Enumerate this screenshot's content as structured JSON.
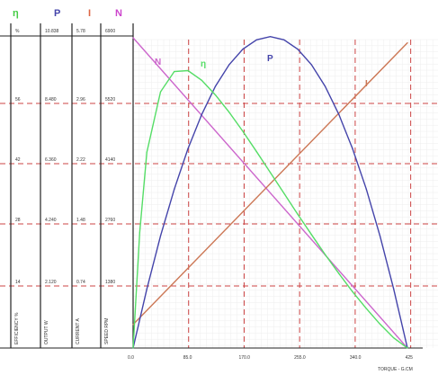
{
  "chart_data": {
    "type": "line",
    "title": "",
    "legend": [
      {
        "symbol": "η",
        "color": "#44cc44"
      },
      {
        "symbol": "P",
        "color": "#4444aa"
      },
      {
        "symbol": "I",
        "color": "#dd6644"
      },
      {
        "symbol": "N",
        "color": "#cc44cc"
      }
    ],
    "xlabel": "TORQUE - G.CM",
    "xlim": [
      0,
      420
    ],
    "x_ticks": [
      "0.0",
      "85.0",
      "170.0",
      "255.0",
      "340.0",
      "425"
    ],
    "x_tick_values": [
      0,
      85,
      170,
      255,
      340,
      425
    ],
    "left_axes": [
      {
        "header": "%",
        "label": "EFFICIENCY %",
        "ticks": [
          "14",
          "28",
          "42",
          "56"
        ]
      },
      {
        "header": "10.838",
        "label": "OUTPUT W",
        "ticks": [
          "2.120",
          "4.240",
          "6.360",
          "8.480"
        ]
      },
      {
        "header": "5.78",
        "label": "CURRENT A",
        "ticks": [
          "0.74",
          "1.48",
          "2.22",
          "2.96"
        ]
      },
      {
        "header": "6900",
        "label": "SPEED RPM",
        "ticks": [
          "1380",
          "2760",
          "4140",
          "5520"
        ]
      }
    ],
    "series": [
      {
        "name": "N",
        "color": "#cc66cc",
        "x": [
          0,
          420
        ],
        "y": [
          6900,
          0
        ]
      },
      {
        "name": "I",
        "color": "#cc7755",
        "x": [
          0,
          420
        ],
        "y": [
          0.28,
          3.64
        ]
      },
      {
        "name": "P",
        "color": "#4444aa",
        "x": [
          0,
          21,
          42,
          63,
          84,
          105,
          126,
          147,
          168,
          189,
          210,
          231,
          252,
          273,
          294,
          315,
          336,
          357,
          378,
          399,
          420
        ],
        "y": [
          0,
          2.02,
          3.83,
          5.43,
          6.81,
          7.98,
          8.94,
          9.68,
          10.21,
          10.53,
          10.64,
          10.53,
          10.21,
          9.68,
          8.94,
          7.98,
          6.81,
          5.43,
          3.83,
          2.02,
          0
        ]
      },
      {
        "name": "η",
        "color": "#55dd66",
        "x": [
          0,
          10,
          21,
          42,
          63,
          84,
          105,
          126,
          147,
          168,
          189,
          210,
          231,
          252,
          273,
          294,
          315,
          336,
          357,
          378,
          399,
          420
        ],
        "y": [
          0,
          26.0,
          44.2,
          57.8,
          62.4,
          62.6,
          60.4,
          57.1,
          53.2,
          48.9,
          44.3,
          39.6,
          34.9,
          30.2,
          25.6,
          21.1,
          16.8,
          12.7,
          8.9,
          5.4,
          2.3,
          0
        ]
      }
    ],
    "grid": true
  }
}
